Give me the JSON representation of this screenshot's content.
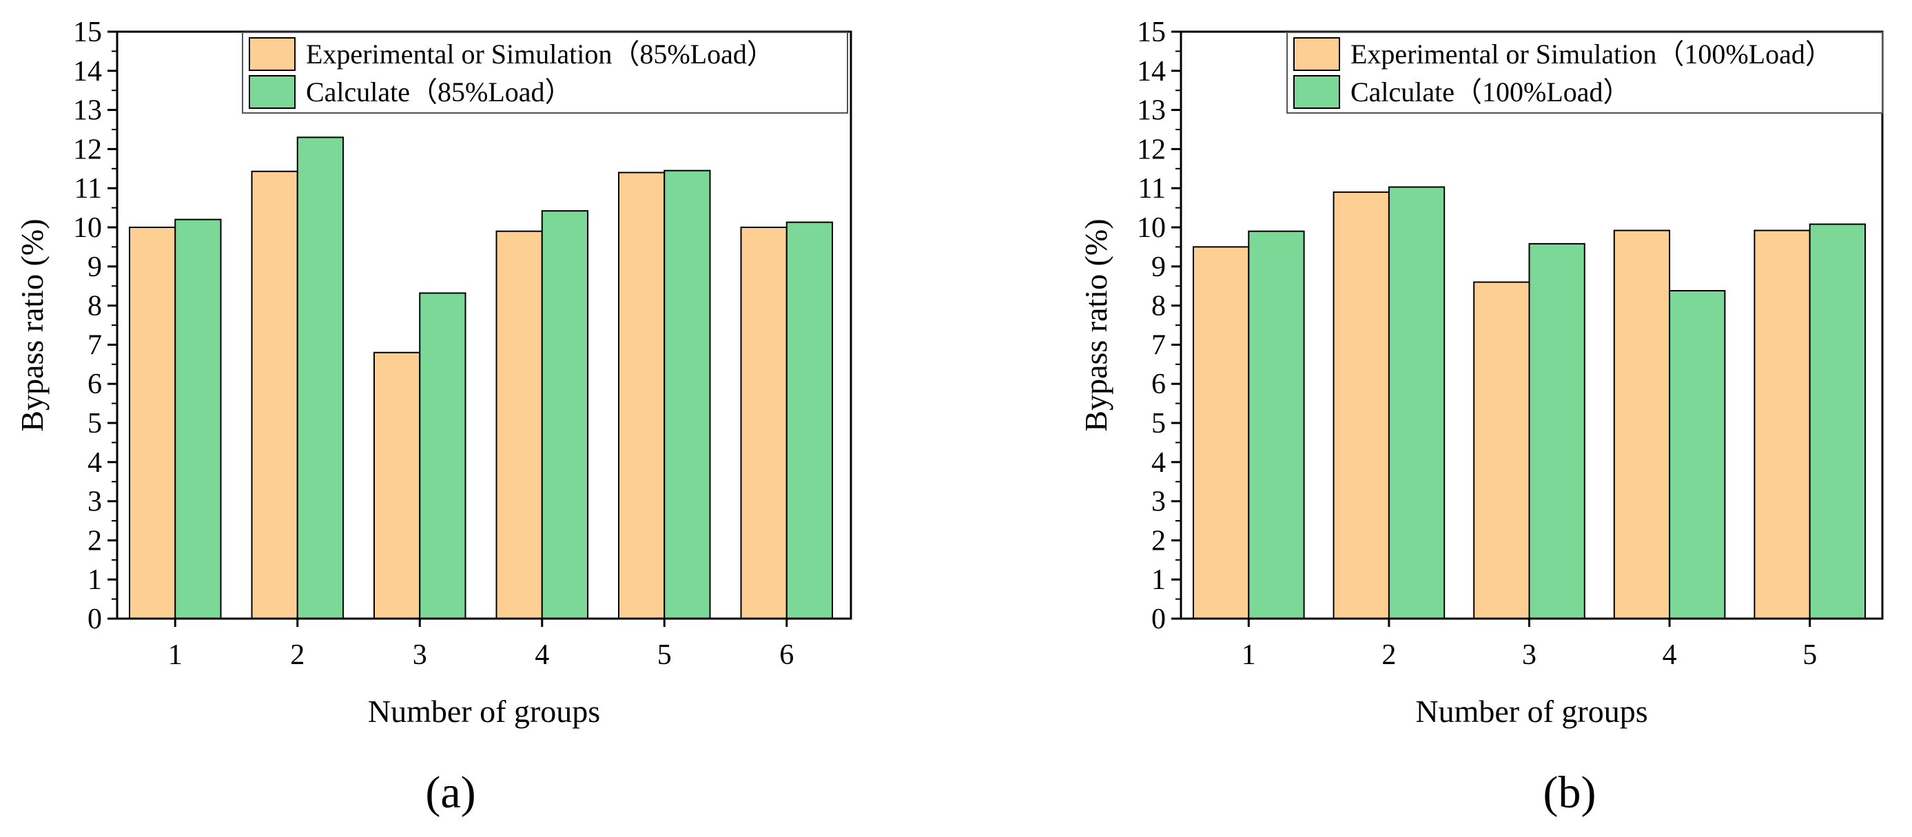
{
  "colors": {
    "experimental": "#FECF92",
    "calculate": "#7BD896",
    "edge": "#000000"
  },
  "chart_data": [
    {
      "type": "bar",
      "panel_label": "(a)",
      "categories": [
        "1",
        "2",
        "3",
        "4",
        "5",
        "6"
      ],
      "series": [
        {
          "name": "Experimental or Simulation（85%Load）",
          "values": [
            10.0,
            11.43,
            6.8,
            9.9,
            11.4,
            10.0
          ]
        },
        {
          "name": "Calculate（85%Load）",
          "values": [
            10.2,
            12.3,
            8.32,
            10.42,
            11.45,
            10.13
          ]
        }
      ],
      "xlabel": "Number of groups",
      "ylabel": "Bypass ratio (%)",
      "ylim": [
        0,
        15
      ],
      "yticks": [
        "0",
        "1",
        "2",
        "3",
        "4",
        "5",
        "6",
        "7",
        "8",
        "9",
        "10",
        "11",
        "12",
        "13",
        "14",
        "15"
      ],
      "legend": "top-right"
    },
    {
      "type": "bar",
      "panel_label": "(b)",
      "categories": [
        "1",
        "2",
        "3",
        "4",
        "5"
      ],
      "series": [
        {
          "name": "Experimental or Simulation（100%Load）",
          "values": [
            9.5,
            10.9,
            8.6,
            9.92,
            9.92
          ]
        },
        {
          "name": "Calculate（100%Load）",
          "values": [
            9.9,
            11.03,
            9.58,
            8.38,
            10.08
          ]
        }
      ],
      "xlabel": "Number of groups",
      "ylabel": "Bypass ratio (%)",
      "ylim": [
        0,
        15
      ],
      "yticks": [
        "0",
        "1",
        "2",
        "3",
        "4",
        "5",
        "6",
        "7",
        "8",
        "9",
        "10",
        "11",
        "12",
        "13",
        "14",
        "15"
      ],
      "legend": "top-right"
    }
  ]
}
